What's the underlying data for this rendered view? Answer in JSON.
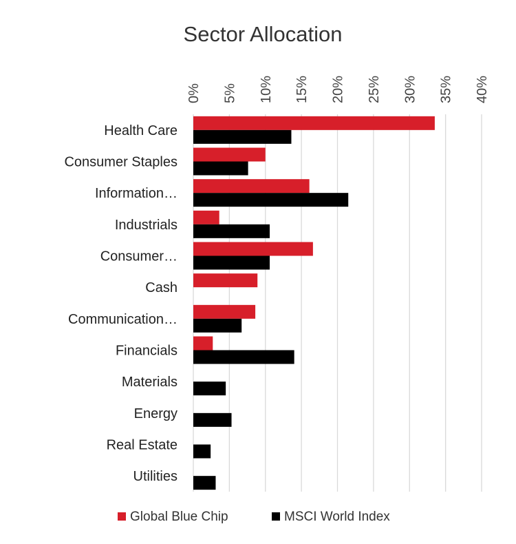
{
  "chart_data": {
    "type": "bar",
    "orientation": "horizontal",
    "title": "Sector Allocation",
    "xlabel": "",
    "ylabel": "",
    "xlim": [
      0,
      40
    ],
    "x_ticks": [
      "0%",
      "5%",
      "10%",
      "15%",
      "20%",
      "25%",
      "30%",
      "35%",
      "40%"
    ],
    "grid": true,
    "legend_position": "bottom",
    "categories": [
      "Health Care",
      "Consumer Staples",
      "Information…",
      "Industrials",
      "Consumer…",
      "Cash",
      "Communication…",
      "Financials",
      "Materials",
      "Energy",
      "Real Estate",
      "Utilities"
    ],
    "series": [
      {
        "name": "Global Blue Chip",
        "color": "#d71f2a",
        "values": [
          33.5,
          10.0,
          16.1,
          3.6,
          16.6,
          8.9,
          8.6,
          2.7,
          null,
          null,
          null,
          null
        ]
      },
      {
        "name": "MSCI World Index",
        "color": "#000000",
        "values": [
          13.6,
          7.6,
          21.5,
          10.6,
          10.6,
          null,
          6.7,
          14.0,
          4.5,
          5.3,
          2.4,
          3.1
        ]
      }
    ]
  }
}
